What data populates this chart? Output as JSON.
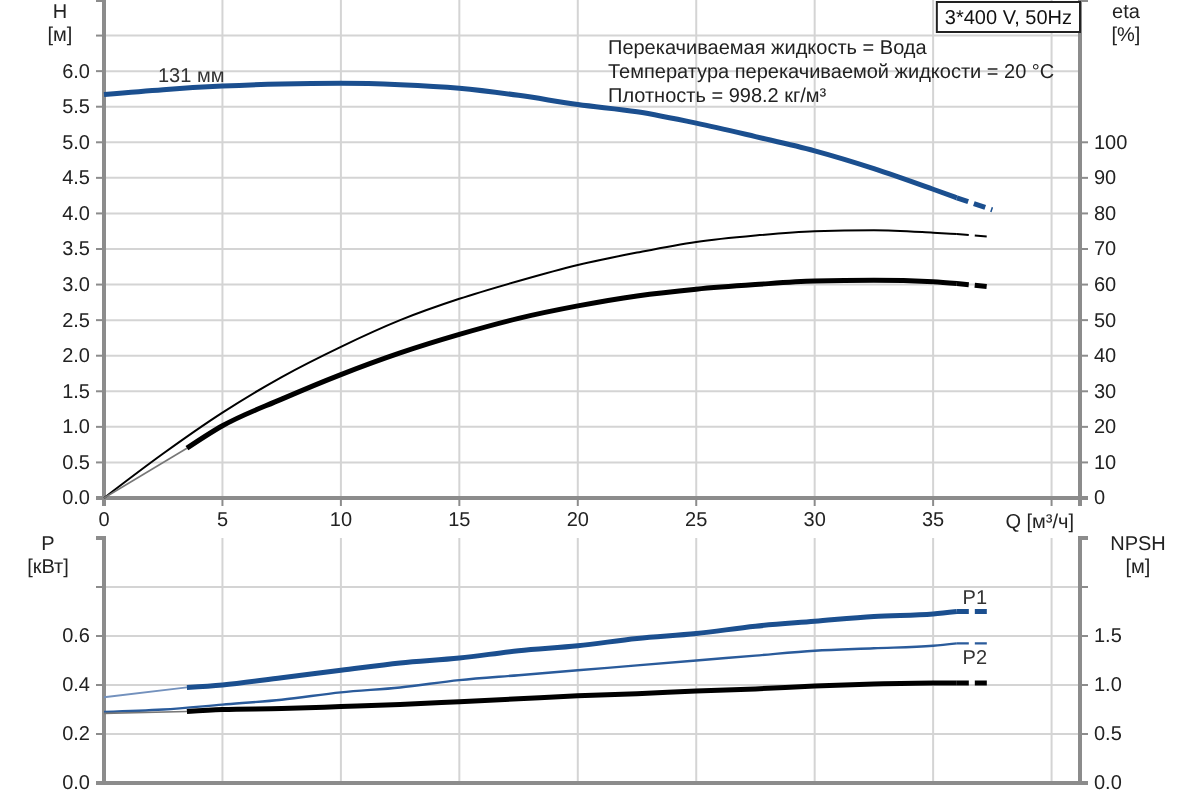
{
  "chart_data": [
    {
      "type": "line",
      "title": "3*400 V, 50Hz",
      "xlabel": "Q [м³/ч]",
      "ylabel": "H [м]",
      "y2label": "eta [%]",
      "annotations": [
        "Перекачиваемая жидкость = Вода",
        "Температура перекачиваемой жидкости = 20 °C",
        "Плотность = 998.2 кг/м³"
      ],
      "xlim": [
        0,
        41.2
      ],
      "xticks": [
        0,
        5,
        10,
        15,
        20,
        25,
        30,
        35,
        {
          "value": 40,
          "label": null
        }
      ],
      "ylim": [
        0,
        7
      ],
      "yticks": [
        {
          "value": 0,
          "label": "0.0"
        },
        {
          "value": 0.5,
          "label": "0.5"
        },
        {
          "value": 1,
          "label": "1.0"
        },
        {
          "value": 1.5,
          "label": "1.5"
        },
        {
          "value": 2,
          "label": "2.0"
        },
        {
          "value": 2.5,
          "label": "2.5"
        },
        {
          "value": 3,
          "label": "3.0"
        },
        {
          "value": 3.5,
          "label": "3.5"
        },
        {
          "value": 4,
          "label": "4.0"
        },
        {
          "value": 4.5,
          "label": "4.5"
        },
        {
          "value": 5,
          "label": "5.0"
        },
        {
          "value": 5.5,
          "label": "5.5"
        },
        {
          "value": 6,
          "label": "6.0"
        },
        {
          "value": 6.5,
          "label": null
        }
      ],
      "y2lim": [
        0,
        140
      ],
      "y2ticks": [
        0,
        10,
        20,
        30,
        40,
        50,
        60,
        70,
        80,
        90,
        100
      ],
      "grid": true,
      "series": [
        {
          "name": "131 мм",
          "color": "#1b4f8f",
          "x": [
            0,
            2.5,
            5,
            7.5,
            10,
            12.5,
            15,
            17.5,
            20,
            22.5,
            25,
            27.5,
            30,
            32.5,
            35,
            36
          ],
          "values": [
            5.67,
            5.74,
            5.79,
            5.82,
            5.83,
            5.81,
            5.76,
            5.66,
            5.53,
            5.43,
            5.27,
            5.08,
            4.88,
            4.63,
            4.34,
            4.22
          ]
        },
        {
          "color": "#1b4f8f",
          "x": [
            36,
            37.5
          ],
          "values": [
            4.22,
            4.05
          ],
          "line_style": "dashed"
        },
        {
          "color": "#000000",
          "axis": "y2",
          "x": [
            0,
            2.5,
            5,
            7.5,
            10,
            12.5,
            15,
            17.5,
            20,
            22.5,
            25,
            27.5,
            30,
            32.5,
            35,
            36
          ],
          "values": [
            0,
            12.5,
            24,
            34,
            42.5,
            50,
            56,
            61,
            65.5,
            69,
            72,
            73.8,
            75,
            75.3,
            74.6,
            74.2
          ]
        },
        {
          "color": "#000000",
          "axis": "y2",
          "x": [
            36,
            37.5
          ],
          "values": [
            74.2,
            73.4
          ],
          "line_style": "dashed"
        },
        {
          "color": "#777777",
          "axis": "y2",
          "x": [
            0,
            3.5
          ],
          "values": [
            0,
            14
          ]
        },
        {
          "color": "#000000",
          "axis": "y2",
          "x": [
            3.5,
            5,
            7.5,
            10,
            12.5,
            15,
            17.5,
            20,
            22.5,
            25,
            27.5,
            30,
            32.5,
            35,
            36
          ],
          "values": [
            14,
            20.3,
            27.8,
            34.7,
            40.8,
            46,
            50.5,
            54,
            56.8,
            58.7,
            60,
            61,
            61.2,
            60.8,
            60.3
          ]
        },
        {
          "color": "#000000",
          "axis": "y2",
          "x": [
            36,
            37.5
          ],
          "values": [
            60.3,
            59.3
          ],
          "line_style": "dashed"
        }
      ]
    },
    {
      "type": "line",
      "ylabel": "P [кВт]",
      "y2label": "NPSH [м]",
      "xlim": [
        0,
        41.2
      ],
      "xticks": [
        0,
        5,
        10,
        15,
        20,
        25,
        30,
        35,
        40
      ],
      "tick_labels": "y",
      "ylim": [
        0,
        1
      ],
      "yticks": [
        {
          "value": 0,
          "label": "0.0"
        },
        {
          "value": 0.2,
          "label": "0.2"
        },
        {
          "value": 0.4,
          "label": "0.4"
        },
        {
          "value": 0.6,
          "label": "0.6"
        },
        {
          "value": 0.8,
          "label": null
        }
      ],
      "y2lim": [
        0,
        2.5
      ],
      "y2ticks": [
        {
          "value": 0,
          "label": "0.0"
        },
        {
          "value": 0.5,
          "label": "0.5"
        },
        {
          "value": 1,
          "label": "1.0"
        },
        {
          "value": 1.5,
          "label": "1.5"
        },
        {
          "value": 2,
          "label": null
        }
      ],
      "grid": true,
      "series": [
        {
          "color": "#7391bd",
          "x": [
            0,
            3.5
          ],
          "values": [
            0.35,
            0.39
          ]
        },
        {
          "name": "P1",
          "color": "#1b4f8f",
          "x": [
            3.5,
            5,
            7.5,
            10,
            12.5,
            15,
            17.5,
            20,
            22.5,
            25,
            27.5,
            30,
            32.5,
            35,
            36
          ],
          "values": [
            0.39,
            0.4,
            0.43,
            0.46,
            0.49,
            0.51,
            0.54,
            0.56,
            0.59,
            0.61,
            0.64,
            0.66,
            0.68,
            0.69,
            0.7
          ]
        },
        {
          "color": "#1b4f8f",
          "x": [
            36,
            37.5
          ],
          "values": [
            0.7,
            0.7
          ],
          "line_style": "dashed"
        },
        {
          "name": "P2",
          "color": "#2a5b9b",
          "x": [
            0,
            2.5,
            5,
            7.5,
            10,
            12.5,
            15,
            17.5,
            20,
            22.5,
            25,
            27.5,
            30,
            32.5,
            35,
            36
          ],
          "values": [
            0.29,
            0.3,
            0.32,
            0.34,
            0.37,
            0.39,
            0.42,
            0.44,
            0.46,
            0.48,
            0.5,
            0.52,
            0.54,
            0.55,
            0.56,
            0.57
          ]
        },
        {
          "color": "#2a5b9b",
          "x": [
            36,
            37.5
          ],
          "values": [
            0.57,
            0.57
          ],
          "line_style": "dashed"
        },
        {
          "color": "#777777",
          "axis": "y2",
          "x": [
            0,
            3.5
          ],
          "values": [
            0.71,
            0.73
          ]
        },
        {
          "color": "#000000",
          "axis": "y2",
          "x": [
            3.5,
            5,
            7.5,
            10,
            12.5,
            15,
            17.5,
            20,
            22.5,
            25,
            27.5,
            30,
            32.5,
            35,
            36
          ],
          "values": [
            0.73,
            0.75,
            0.76,
            0.78,
            0.8,
            0.83,
            0.86,
            0.89,
            0.91,
            0.94,
            0.96,
            0.99,
            1.01,
            1.02,
            1.02
          ]
        },
        {
          "color": "#000000",
          "axis": "y2",
          "x": [
            36,
            37.5
          ],
          "values": [
            1.02,
            1.02
          ],
          "line_style": "dashed"
        }
      ]
    }
  ]
}
